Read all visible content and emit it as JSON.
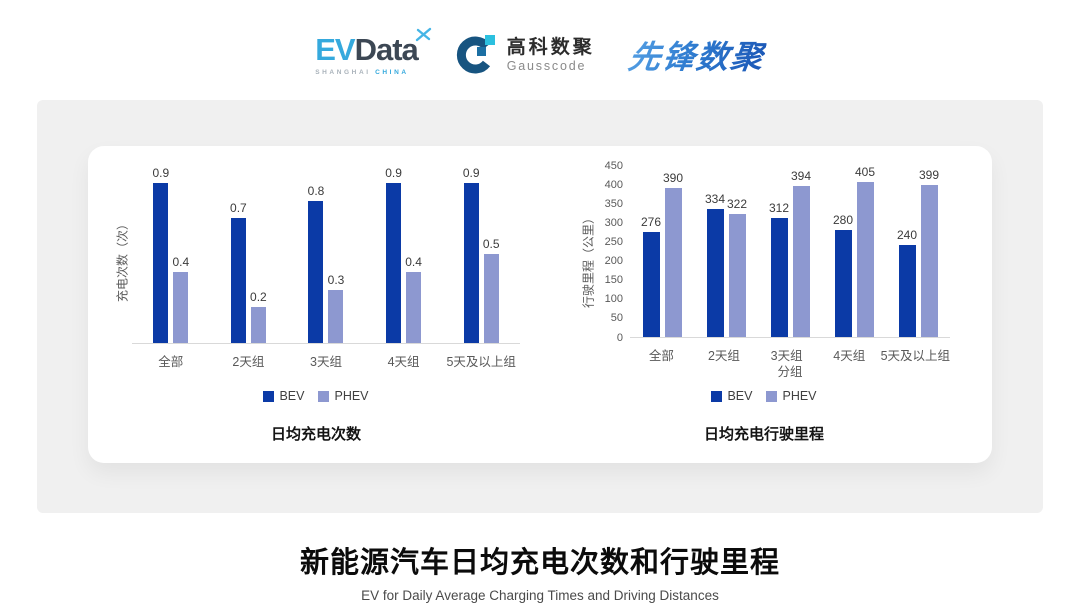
{
  "logos": {
    "evdata": {
      "ev": "EV",
      "data": "Data",
      "sub_left": "SHANGHAI",
      "sub_right": "CHINA"
    },
    "gausscode": {
      "cn": "高科数聚",
      "en": "Gausscode"
    },
    "xianfeng": {
      "text": "先锋数聚"
    }
  },
  "colors": {
    "bev": "#0B3AA6",
    "phev": "#8D98D0",
    "evdata_blue": "#35A9DD",
    "evdata_dark": "#3C4754",
    "gausscode_navy": "#175480",
    "gausscode_cyan": "#2BC0DF",
    "xianfeng_blue": "#2F7CD0",
    "panel_bg": "#F0F0F0",
    "axis_text": "#595959",
    "axis_line": "#D9D9D9"
  },
  "chart_data": [
    {
      "type": "bar",
      "title": "日均充电次数",
      "ylabel": "充电次数（次）",
      "xlabel": "",
      "categories": [
        "全部",
        "2天组",
        "3天组",
        "4天组",
        "5天及以上组"
      ],
      "series": [
        {
          "name": "BEV",
          "values": [
            0.9,
            0.7,
            0.8,
            0.9,
            0.9
          ]
        },
        {
          "name": "PHEV",
          "values": [
            0.4,
            0.2,
            0.3,
            0.4,
            0.5
          ]
        }
      ],
      "ylim": [
        0,
        1.0
      ],
      "yticks": [],
      "yticks_visible": false,
      "grid": false,
      "legend": [
        "BEV",
        "PHEV"
      ],
      "legend_position": "bottom"
    },
    {
      "type": "bar",
      "title": "日均充电行驶里程",
      "ylabel": "行驶里程（公里）",
      "xlabel": "分组",
      "categories": [
        "全部",
        "2天组",
        "3天组",
        "4天组",
        "5天及以上组"
      ],
      "series": [
        {
          "name": "BEV",
          "values": [
            276,
            334,
            312,
            280,
            240
          ]
        },
        {
          "name": "PHEV",
          "values": [
            390,
            322,
            394,
            405,
            399
          ]
        }
      ],
      "ylim": [
        0,
        450
      ],
      "yticks": [
        0,
        50,
        100,
        150,
        200,
        250,
        300,
        350,
        400,
        450
      ],
      "yticks_visible": true,
      "grid": false,
      "legend": [
        "BEV",
        "PHEV"
      ],
      "legend_position": "bottom"
    }
  ],
  "page": {
    "main_title": "新能源汽车日均充电次数和行驶里程",
    "main_subtitle": "EV for Daily Average Charging Times and Driving Distances"
  }
}
